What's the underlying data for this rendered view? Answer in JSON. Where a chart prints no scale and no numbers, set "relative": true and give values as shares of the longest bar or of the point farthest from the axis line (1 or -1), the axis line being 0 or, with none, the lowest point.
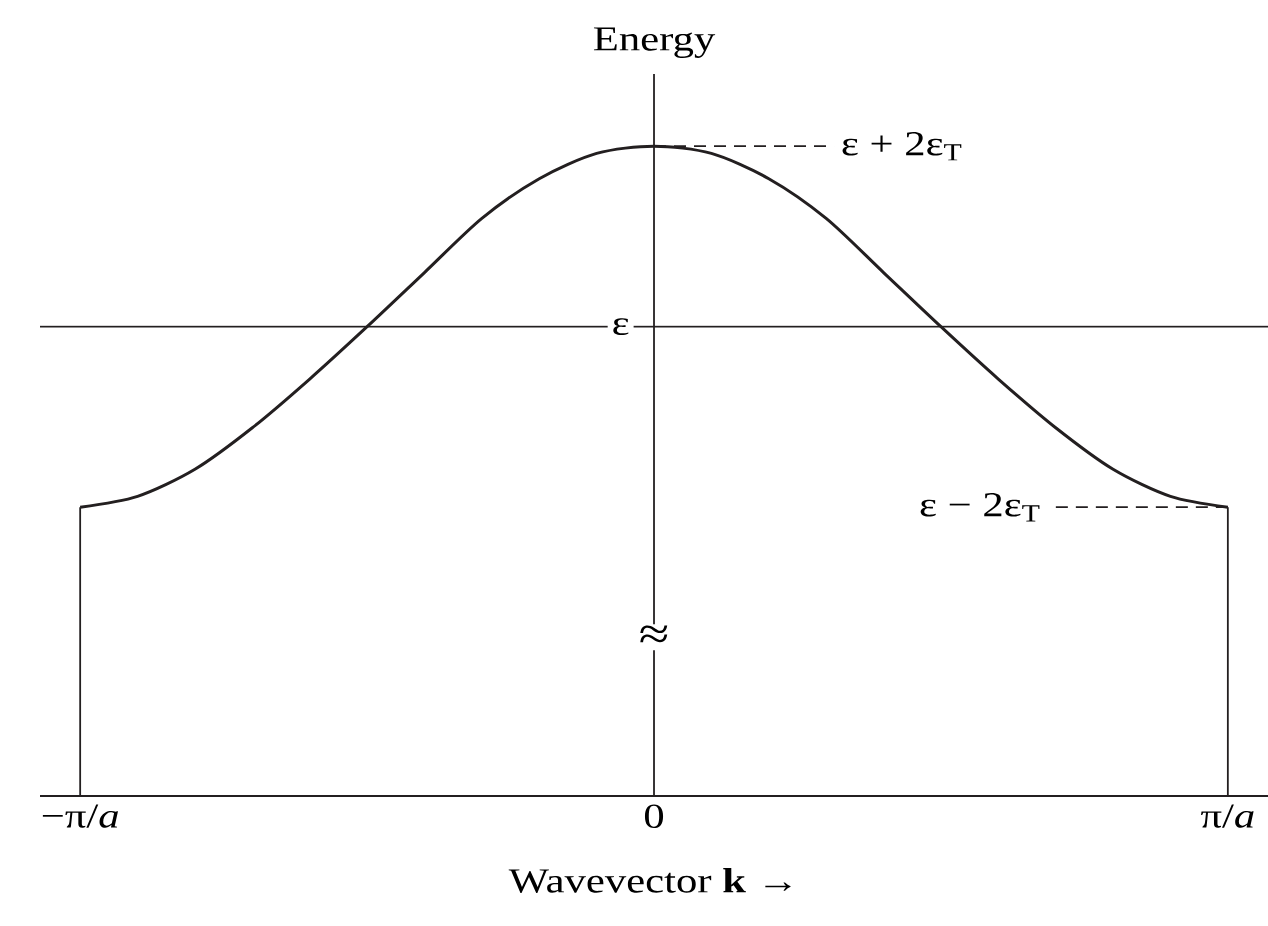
{
  "chart_data": {
    "type": "line",
    "relative": true,
    "xlabel": "Wavevector **k** →",
    "ylabel": "Energy",
    "categories": [
      "−π/*a*",
      null,
      null,
      null,
      null,
      null,
      null,
      null,
      null,
      null,
      "0",
      null,
      null,
      null,
      null,
      null,
      null,
      null,
      null,
      null,
      "π/*a*"
    ],
    "values": [
      -1,
      -0.94,
      -0.79,
      -0.56,
      -0.29,
      0,
      0.3,
      0.6,
      0.82,
      0.96,
      1,
      0.96,
      0.82,
      0.6,
      0.3,
      0,
      -0.29,
      -0.56,
      -0.79,
      -0.94,
      -1
    ],
    "color": "#231f20",
    "tick_labels": "x",
    "marker": "none",
    "line_style": "solid",
    "annotations": [
      "ε",
      {
        "text": "ε + 2ε$_{T}$",
        "x": "0",
        "y": 1
      },
      {
        "text": "ε − 2ε$_{T}$",
        "x": "π/*a*",
        "y": -1
      },
      "≈"
    ]
  }
}
